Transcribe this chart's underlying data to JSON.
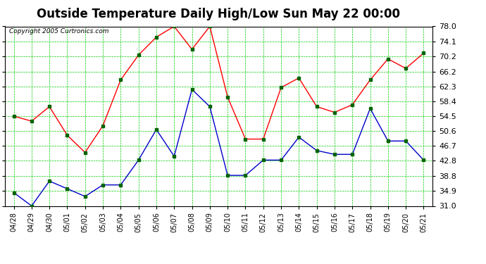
{
  "title": "Outside Temperature Daily High/Low Sun May 22 00:00",
  "copyright": "Copyright 2005 Curtronics.com",
  "labels": [
    "04/28",
    "04/29",
    "04/30",
    "05/01",
    "05/02",
    "05/03",
    "05/04",
    "05/05",
    "05/06",
    "05/07",
    "05/08",
    "05/09",
    "05/10",
    "05/11",
    "05/12",
    "05/13",
    "05/14",
    "05/15",
    "05/16",
    "05/17",
    "05/18",
    "05/19",
    "05/20",
    "05/21"
  ],
  "high_temps": [
    54.5,
    53.2,
    57.0,
    49.5,
    45.0,
    52.0,
    64.0,
    70.5,
    75.2,
    78.0,
    72.0,
    78.0,
    59.5,
    48.5,
    48.5,
    62.0,
    64.5,
    57.0,
    55.5,
    57.5,
    64.0,
    69.5,
    67.0,
    71.0
  ],
  "low_temps": [
    34.5,
    31.0,
    37.5,
    35.5,
    33.5,
    36.5,
    36.5,
    43.0,
    51.0,
    44.0,
    61.5,
    57.0,
    39.0,
    39.0,
    43.0,
    43.0,
    49.0,
    45.5,
    44.5,
    44.5,
    56.5,
    48.0,
    48.0,
    43.0
  ],
  "high_color": "#ff0000",
  "low_color": "#0000cc",
  "marker_color": "#006400",
  "ylim_min": 31.0,
  "ylim_max": 78.0,
  "yticks": [
    31.0,
    34.9,
    38.8,
    42.8,
    46.7,
    50.6,
    54.5,
    58.4,
    62.3,
    66.2,
    70.2,
    74.1,
    78.0
  ],
  "bg_color": "#ffffff",
  "grid_color": "#00cc00",
  "title_fontsize": 12,
  "label_fontsize": 7,
  "tick_fontsize": 8,
  "copyright_fontsize": 6.5
}
